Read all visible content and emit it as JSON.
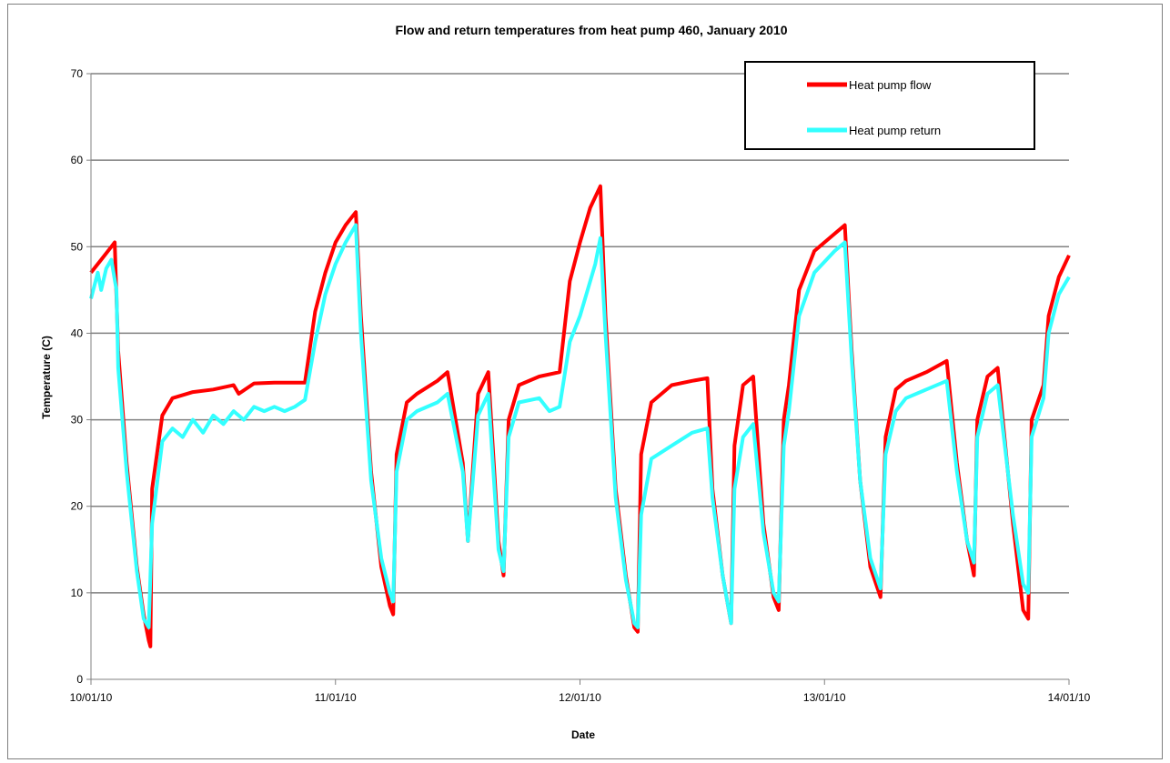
{
  "chart_data": {
    "type": "line",
    "title": "Flow and return temperatures from heat pump 460, January 2010",
    "xlabel": "Date",
    "ylabel": "Temperature (C)",
    "x_tick_labels": [
      "10/01/10",
      "11/01/10",
      "12/01/10",
      "13/01/10",
      "14/01/10"
    ],
    "y_tick_labels": [
      "0",
      "10",
      "20",
      "30",
      "40",
      "50",
      "60",
      "70"
    ],
    "xlim": [
      "2010-01-10T00:00",
      "2010-01-14T00:00"
    ],
    "ylim": [
      0,
      70
    ],
    "y_major_step": 10,
    "grid": "horizontal major gridlines",
    "legend_position": "top-right",
    "series": [
      {
        "name": "Heat pump flow",
        "color": "#ff0000",
        "points": [
          [
            "2010-01-10T00:00",
            47.0
          ],
          [
            "2010-01-10T01:00",
            48.5
          ],
          [
            "2010-01-10T02:00",
            50.0
          ],
          [
            "2010-01-10T02:20",
            50.5
          ],
          [
            "2010-01-10T02:40",
            38.0
          ],
          [
            "2010-01-10T03:30",
            25.0
          ],
          [
            "2010-01-10T04:30",
            13.0
          ],
          [
            "2010-01-10T05:10",
            7.5
          ],
          [
            "2010-01-10T05:40",
            4.5
          ],
          [
            "2010-01-10T05:50",
            3.8
          ],
          [
            "2010-01-10T06:00",
            22.0
          ],
          [
            "2010-01-10T07:00",
            30.5
          ],
          [
            "2010-01-10T08:00",
            32.5
          ],
          [
            "2010-01-10T10:00",
            33.2
          ],
          [
            "2010-01-10T12:00",
            33.5
          ],
          [
            "2010-01-10T14:00",
            34.0
          ],
          [
            "2010-01-10T14:30",
            33.0
          ],
          [
            "2010-01-10T16:00",
            34.2
          ],
          [
            "2010-01-10T18:00",
            34.3
          ],
          [
            "2010-01-10T21:00",
            34.3
          ],
          [
            "2010-01-10T22:00",
            42.5
          ],
          [
            "2010-01-10T23:00",
            47.0
          ],
          [
            "2010-01-11T00:00",
            50.5
          ],
          [
            "2010-01-11T01:00",
            52.5
          ],
          [
            "2010-01-11T02:00",
            54.0
          ],
          [
            "2010-01-11T02:30",
            42.0
          ],
          [
            "2010-01-11T03:30",
            24.0
          ],
          [
            "2010-01-11T04:30",
            13.0
          ],
          [
            "2010-01-11T05:20",
            8.5
          ],
          [
            "2010-01-11T05:40",
            7.5
          ],
          [
            "2010-01-11T06:00",
            26.0
          ],
          [
            "2010-01-11T07:00",
            32.0
          ],
          [
            "2010-01-11T08:00",
            33.0
          ],
          [
            "2010-01-11T10:00",
            34.5
          ],
          [
            "2010-01-11T11:00",
            35.5
          ],
          [
            "2010-01-11T12:30",
            25.0
          ],
          [
            "2010-01-11T13:00",
            16.0
          ],
          [
            "2010-01-11T14:00",
            33.0
          ],
          [
            "2010-01-11T15:00",
            35.5
          ],
          [
            "2010-01-11T16:00",
            16.0
          ],
          [
            "2010-01-11T16:30",
            12.0
          ],
          [
            "2010-01-11T17:00",
            30.0
          ],
          [
            "2010-01-11T18:00",
            34.0
          ],
          [
            "2010-01-11T20:00",
            35.0
          ],
          [
            "2010-01-11T22:00",
            35.5
          ],
          [
            "2010-01-11T23:00",
            46.0
          ],
          [
            "2010-01-12T00:00",
            50.5
          ],
          [
            "2010-01-12T01:00",
            54.5
          ],
          [
            "2010-01-12T02:00",
            57.0
          ],
          [
            "2010-01-12T02:30",
            42.0
          ],
          [
            "2010-01-12T03:30",
            22.0
          ],
          [
            "2010-01-12T04:30",
            12.0
          ],
          [
            "2010-01-12T05:20",
            6.0
          ],
          [
            "2010-01-12T05:40",
            5.5
          ],
          [
            "2010-01-12T06:00",
            26.0
          ],
          [
            "2010-01-12T07:00",
            32.0
          ],
          [
            "2010-01-12T09:00",
            34.0
          ],
          [
            "2010-01-12T11:00",
            34.5
          ],
          [
            "2010-01-12T12:30",
            34.8
          ],
          [
            "2010-01-12T13:00",
            22.0
          ],
          [
            "2010-01-12T14:00",
            12.0
          ],
          [
            "2010-01-12T14:50",
            6.5
          ],
          [
            "2010-01-12T15:10",
            27.0
          ],
          [
            "2010-01-12T16:00",
            34.0
          ],
          [
            "2010-01-12T17:00",
            35.0
          ],
          [
            "2010-01-12T18:00",
            18.0
          ],
          [
            "2010-01-12T19:00",
            9.5
          ],
          [
            "2010-01-12T19:30",
            8.0
          ],
          [
            "2010-01-12T20:00",
            30.0
          ],
          [
            "2010-01-12T20:30",
            34.0
          ],
          [
            "2010-01-12T21:30",
            45.0
          ],
          [
            "2010-01-12T23:00",
            49.5
          ],
          [
            "2010-01-13T01:00",
            51.5
          ],
          [
            "2010-01-13T02:00",
            52.5
          ],
          [
            "2010-01-13T02:40",
            38.0
          ],
          [
            "2010-01-13T03:30",
            23.0
          ],
          [
            "2010-01-13T04:30",
            13.0
          ],
          [
            "2010-01-13T05:30",
            9.5
          ],
          [
            "2010-01-13T06:00",
            28.0
          ],
          [
            "2010-01-13T07:00",
            33.5
          ],
          [
            "2010-01-13T08:00",
            34.5
          ],
          [
            "2010-01-13T10:00",
            35.5
          ],
          [
            "2010-01-13T12:00",
            36.8
          ],
          [
            "2010-01-13T13:00",
            25.0
          ],
          [
            "2010-01-13T14:00",
            16.0
          ],
          [
            "2010-01-13T14:40",
            12.0
          ],
          [
            "2010-01-13T15:00",
            30.0
          ],
          [
            "2010-01-13T16:00",
            35.0
          ],
          [
            "2010-01-13T17:00",
            36.0
          ],
          [
            "2010-01-13T18:30",
            18.0
          ],
          [
            "2010-01-13T19:30",
            8.0
          ],
          [
            "2010-01-13T20:00",
            7.0
          ],
          [
            "2010-01-13T20:20",
            30.0
          ],
          [
            "2010-01-13T21:30",
            34.0
          ],
          [
            "2010-01-13T22:00",
            42.0
          ],
          [
            "2010-01-13T23:00",
            46.5
          ],
          [
            "2010-01-14T00:00",
            49.0
          ]
        ]
      },
      {
        "name": "Heat pump return",
        "color": "#33ffff",
        "points": [
          [
            "2010-01-10T00:00",
            44.0
          ],
          [
            "2010-01-10T00:40",
            47.0
          ],
          [
            "2010-01-10T01:00",
            45.0
          ],
          [
            "2010-01-10T01:30",
            47.5
          ],
          [
            "2010-01-10T02:00",
            48.5
          ],
          [
            "2010-01-10T02:30",
            45.0
          ],
          [
            "2010-01-10T02:40",
            36.0
          ],
          [
            "2010-01-10T03:30",
            24.0
          ],
          [
            "2010-01-10T04:30",
            12.5
          ],
          [
            "2010-01-10T05:10",
            7.0
          ],
          [
            "2010-01-10T05:40",
            6.0
          ],
          [
            "2010-01-10T06:00",
            18.0
          ],
          [
            "2010-01-10T07:00",
            27.5
          ],
          [
            "2010-01-10T08:00",
            29.0
          ],
          [
            "2010-01-10T09:00",
            28.0
          ],
          [
            "2010-01-10T10:00",
            30.0
          ],
          [
            "2010-01-10T11:00",
            28.5
          ],
          [
            "2010-01-10T12:00",
            30.5
          ],
          [
            "2010-01-10T13:00",
            29.5
          ],
          [
            "2010-01-10T14:00",
            31.0
          ],
          [
            "2010-01-10T15:00",
            30.0
          ],
          [
            "2010-01-10T16:00",
            31.5
          ],
          [
            "2010-01-10T17:00",
            31.0
          ],
          [
            "2010-01-10T18:00",
            31.5
          ],
          [
            "2010-01-10T19:00",
            31.0
          ],
          [
            "2010-01-10T20:00",
            31.5
          ],
          [
            "2010-01-10T21:00",
            32.3
          ],
          [
            "2010-01-10T22:00",
            39.0
          ],
          [
            "2010-01-10T23:00",
            44.5
          ],
          [
            "2010-01-11T00:00",
            48.0
          ],
          [
            "2010-01-11T01:00",
            50.5
          ],
          [
            "2010-01-11T02:00",
            52.5
          ],
          [
            "2010-01-11T02:30",
            40.0
          ],
          [
            "2010-01-11T03:30",
            23.0
          ],
          [
            "2010-01-11T04:30",
            14.0
          ],
          [
            "2010-01-11T05:20",
            10.0
          ],
          [
            "2010-01-11T05:40",
            9.0
          ],
          [
            "2010-01-11T06:00",
            24.0
          ],
          [
            "2010-01-11T07:00",
            30.0
          ],
          [
            "2010-01-11T08:00",
            31.0
          ],
          [
            "2010-01-11T10:00",
            32.0
          ],
          [
            "2010-01-11T11:00",
            33.0
          ],
          [
            "2010-01-11T12:30",
            24.0
          ],
          [
            "2010-01-11T13:00",
            16.0
          ],
          [
            "2010-01-11T14:00",
            30.5
          ],
          [
            "2010-01-11T15:00",
            33.0
          ],
          [
            "2010-01-11T16:00",
            15.0
          ],
          [
            "2010-01-11T16:30",
            12.5
          ],
          [
            "2010-01-11T17:00",
            28.0
          ],
          [
            "2010-01-11T18:00",
            32.0
          ],
          [
            "2010-01-11T20:00",
            32.5
          ],
          [
            "2010-01-11T21:00",
            31.0
          ],
          [
            "2010-01-11T22:00",
            31.5
          ],
          [
            "2010-01-11T23:00",
            39.0
          ],
          [
            "2010-01-12T00:00",
            42.0
          ],
          [
            "2010-01-12T01:00",
            46.0
          ],
          [
            "2010-01-12T01:30",
            48.0
          ],
          [
            "2010-01-12T02:00",
            51.0
          ],
          [
            "2010-01-12T02:30",
            40.0
          ],
          [
            "2010-01-12T03:30",
            21.0
          ],
          [
            "2010-01-12T04:30",
            11.5
          ],
          [
            "2010-01-12T05:20",
            6.5
          ],
          [
            "2010-01-12T05:40",
            6.0
          ],
          [
            "2010-01-12T06:00",
            19.0
          ],
          [
            "2010-01-12T07:00",
            25.5
          ],
          [
            "2010-01-12T09:00",
            27.0
          ],
          [
            "2010-01-12T11:00",
            28.5
          ],
          [
            "2010-01-12T12:30",
            29.0
          ],
          [
            "2010-01-12T13:00",
            21.0
          ],
          [
            "2010-01-12T14:00",
            12.0
          ],
          [
            "2010-01-12T14:50",
            6.5
          ],
          [
            "2010-01-12T15:10",
            22.0
          ],
          [
            "2010-01-12T16:00",
            28.0
          ],
          [
            "2010-01-12T17:00",
            29.5
          ],
          [
            "2010-01-12T18:00",
            17.0
          ],
          [
            "2010-01-12T19:00",
            10.0
          ],
          [
            "2010-01-12T19:30",
            9.0
          ],
          [
            "2010-01-12T20:00",
            27.0
          ],
          [
            "2010-01-12T20:30",
            31.0
          ],
          [
            "2010-01-12T21:30",
            42.0
          ],
          [
            "2010-01-12T23:00",
            47.0
          ],
          [
            "2010-01-13T01:00",
            49.5
          ],
          [
            "2010-01-13T02:00",
            50.5
          ],
          [
            "2010-01-13T02:40",
            37.0
          ],
          [
            "2010-01-13T03:30",
            23.0
          ],
          [
            "2010-01-13T04:30",
            14.0
          ],
          [
            "2010-01-13T05:30",
            10.5
          ],
          [
            "2010-01-13T06:00",
            26.0
          ],
          [
            "2010-01-13T07:00",
            31.0
          ],
          [
            "2010-01-13T08:00",
            32.5
          ],
          [
            "2010-01-13T10:00",
            33.5
          ],
          [
            "2010-01-13T12:00",
            34.5
          ],
          [
            "2010-01-13T13:00",
            24.0
          ],
          [
            "2010-01-13T14:00",
            16.0
          ],
          [
            "2010-01-13T14:40",
            13.5
          ],
          [
            "2010-01-13T15:00",
            28.0
          ],
          [
            "2010-01-13T16:00",
            33.0
          ],
          [
            "2010-01-13T17:00",
            34.0
          ],
          [
            "2010-01-13T18:30",
            19.0
          ],
          [
            "2010-01-13T19:30",
            11.0
          ],
          [
            "2010-01-13T20:00",
            10.0
          ],
          [
            "2010-01-13T20:20",
            28.0
          ],
          [
            "2010-01-13T21:30",
            32.5
          ],
          [
            "2010-01-13T22:00",
            40.0
          ],
          [
            "2010-01-13T23:00",
            44.5
          ],
          [
            "2010-01-14T00:00",
            46.5
          ]
        ]
      }
    ]
  }
}
